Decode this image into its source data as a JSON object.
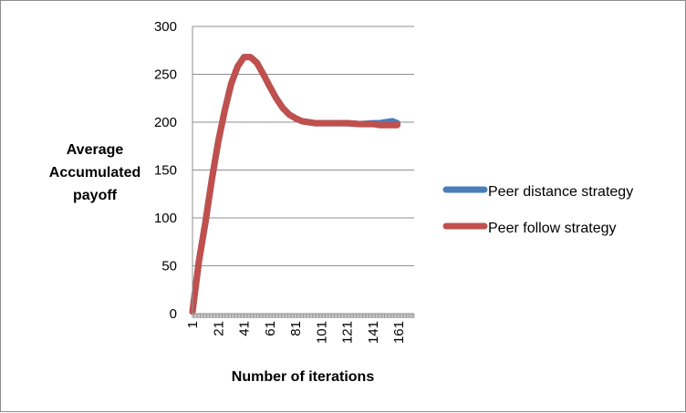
{
  "chart_data": {
    "type": "line",
    "title": "",
    "xlabel": "Number of iterations",
    "ylabel": [
      "Average",
      "Accumulated",
      "payoff"
    ],
    "ylim": [
      0,
      300
    ],
    "yticks": [
      0,
      50,
      100,
      150,
      200,
      250,
      300
    ],
    "xlim": [
      1,
      160
    ],
    "xticks": [
      1,
      21,
      41,
      61,
      81,
      101,
      121,
      141,
      161
    ],
    "grid": "horizontal",
    "legend_position": "right",
    "series": [
      {
        "name": "Peer distance strategy",
        "color": "#4a7ebb",
        "x": [
          1,
          6,
          11,
          16,
          21,
          26,
          31,
          36,
          41,
          46,
          51,
          56,
          61,
          66,
          71,
          76,
          81,
          86,
          91,
          96,
          101,
          111,
          121,
          131,
          141,
          146,
          151,
          156,
          160
        ],
        "y": [
          2,
          55,
          95,
          140,
          180,
          212,
          240,
          258,
          268,
          268,
          262,
          250,
          237,
          225,
          215,
          208,
          204,
          201,
          200,
          199,
          199,
          199,
          199,
          198,
          199,
          199,
          200,
          201,
          199
        ]
      },
      {
        "name": "Peer follow strategy",
        "color": "#c0504d",
        "x": [
          1,
          6,
          11,
          16,
          21,
          26,
          31,
          36,
          41,
          46,
          51,
          56,
          61,
          66,
          71,
          76,
          81,
          86,
          91,
          96,
          101,
          111,
          121,
          131,
          141,
          146,
          151,
          156,
          160
        ],
        "y": [
          2,
          55,
          95,
          140,
          180,
          212,
          240,
          258,
          268,
          268,
          262,
          250,
          237,
          225,
          215,
          208,
          204,
          201,
          200,
          199,
          199,
          199,
          199,
          198,
          198,
          197,
          197,
          197,
          197
        ]
      }
    ]
  }
}
